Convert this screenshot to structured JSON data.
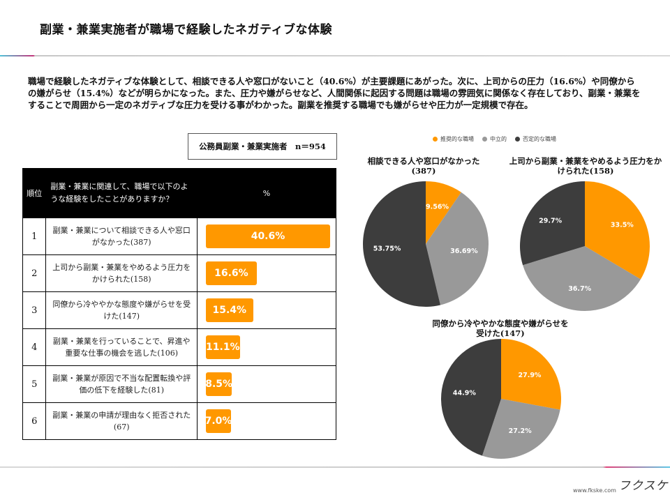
{
  "page": {
    "title": "副業・兼業実施者が職場で経験したネガティブな体験",
    "summary": "職場で経験したネガティブな体験として、相談できる人や窓口がないこと（40.6%）が主要課題にあがった。次に、上司からの圧力（16.6%）や同僚からの嫌がらせ（15.4%）などが明らかになった。また、圧力や嫌がらせなど、人間関係に起因する問題は職場の雰囲気に関係なく存在しており、副業・兼業をすることで周囲から一定のネガティブな圧力を受ける事がわかった。副業を推奨する職場でも嫌がらせや圧力が一定規模で存在。",
    "sample_label": "公務員副業・兼業実施者　n＝954",
    "footer_url": "www.fkske.com",
    "logo_text": "フクスケ"
  },
  "colors": {
    "promote": "#ff9800",
    "neutral": "#999999",
    "negative": "#3d3d3d"
  },
  "chart_data": [
    {
      "type": "table",
      "title": "公務員副業・兼業実施者　n＝954",
      "headers": [
        "順位",
        "副業・兼業に関連して、職場で以下のような経験をしたことがありますか？",
        "%"
      ],
      "rows": [
        {
          "rank": "1",
          "label": "副業・兼業について相談できる人や窓口がなかった(387)",
          "value": 40.6,
          "value_label": "40.6%"
        },
        {
          "rank": "2",
          "label": "上司から副業・兼業をやめるよう圧力をかけられた(158)",
          "value": 16.6,
          "value_label": "16.6%"
        },
        {
          "rank": "3",
          "label": "同僚から冷ややかな態度や嫌がらせを受けた(147)",
          "value": 15.4,
          "value_label": "15.4%"
        },
        {
          "rank": "4",
          "label": "副業・兼業を行っていることで、昇進や重要な仕事の機会を逃した(106)",
          "value": 11.1,
          "value_label": "11.1%"
        },
        {
          "rank": "5",
          "label": "副業・兼業が原因で不当な配置転換や評価の低下を経験した(81)",
          "value": 8.5,
          "value_label": "8.5%"
        },
        {
          "rank": "6",
          "label": "副業・兼業の申請が理由なく拒否された(67)",
          "value": 7.0,
          "value_label": "7.0%"
        }
      ]
    },
    {
      "type": "pie",
      "title": "相談できる人や窓口がなかった(387)",
      "legend": [
        "推奨的な職場",
        "中立的",
        "否定的な職場"
      ],
      "legend_position": "top",
      "slices": [
        {
          "name": "推奨的な職場",
          "value": 9.56,
          "label": "9.56%"
        },
        {
          "name": "中立的",
          "value": 36.69,
          "label": "36.69%"
        },
        {
          "name": "否定的な職場",
          "value": 53.75,
          "label": "53.75%"
        }
      ]
    },
    {
      "type": "pie",
      "title": "上司から副業・兼業をやめるよう圧力をかけられた(158)",
      "slices": [
        {
          "name": "推奨的な職場",
          "value": 33.5,
          "label": "33.5%"
        },
        {
          "name": "中立的",
          "value": 36.7,
          "label": "36.7%"
        },
        {
          "name": "否定的な職場",
          "value": 29.7,
          "label": "29.7%"
        }
      ]
    },
    {
      "type": "pie",
      "title": "同僚から冷ややかな態度や嫌がらせを受けた(147)",
      "slices": [
        {
          "name": "推奨的な職場",
          "value": 27.9,
          "label": "27.9%"
        },
        {
          "name": "中立的",
          "value": 27.2,
          "label": "27.2%"
        },
        {
          "name": "否定的な職場",
          "value": 44.9,
          "label": "44.9%"
        }
      ]
    }
  ]
}
